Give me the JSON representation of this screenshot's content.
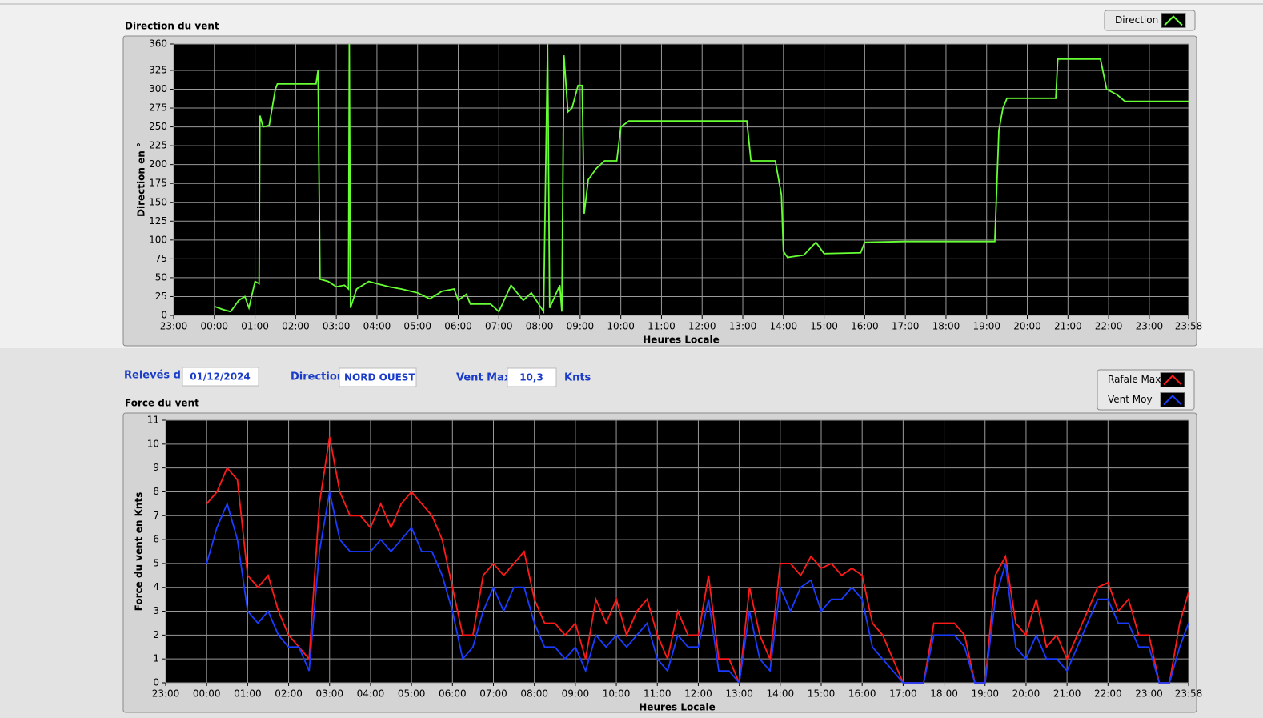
{
  "header": {
    "date_label": "Relevés du",
    "date": "01/12/2024",
    "direction_label": "Direction",
    "direction": "NORD OUEST",
    "vmax_label": "Vent Max",
    "vmax": "10,3",
    "vmax_unit": "Knts"
  },
  "chart_data": [
    {
      "type": "line",
      "title": "Direction du vent",
      "x_label": "Heures Locale",
      "y_label": "Direction en °",
      "grid": true,
      "legend": "top-right",
      "xlim": [
        0,
        24.967
      ],
      "ylim": [
        0,
        360
      ],
      "xticks": [
        {
          "value": 0,
          "label": "23:00"
        },
        {
          "value": 1,
          "label": "00:00"
        },
        {
          "value": 2,
          "label": "01:00"
        },
        {
          "value": 3,
          "label": "02:00"
        },
        {
          "value": 4,
          "label": "03:00"
        },
        {
          "value": 5,
          "label": "04:00"
        },
        {
          "value": 6,
          "label": "05:00"
        },
        {
          "value": 7,
          "label": "06:00"
        },
        {
          "value": 8,
          "label": "07:00"
        },
        {
          "value": 9,
          "label": "08:00"
        },
        {
          "value": 10,
          "label": "09:00"
        },
        {
          "value": 11,
          "label": "10:00"
        },
        {
          "value": 12,
          "label": "11:00"
        },
        {
          "value": 13,
          "label": "12:00"
        },
        {
          "value": 14,
          "label": "13:00"
        },
        {
          "value": 15,
          "label": "14:00"
        },
        {
          "value": 16,
          "label": "15:00"
        },
        {
          "value": 17,
          "label": "16:00"
        },
        {
          "value": 18,
          "label": "17:00"
        },
        {
          "value": 19,
          "label": "18:00"
        },
        {
          "value": 20,
          "label": "19:00"
        },
        {
          "value": 21,
          "label": "20:00"
        },
        {
          "value": 22,
          "label": "21:00"
        },
        {
          "value": 23,
          "label": "22:00"
        },
        {
          "value": 24,
          "label": "23:00"
        },
        {
          "value": 24.967,
          "label": "23:58"
        }
      ],
      "yticks": [
        0,
        25,
        50,
        75,
        100,
        125,
        150,
        175,
        200,
        225,
        250,
        275,
        300,
        325,
        360
      ],
      "x": [
        1.0,
        1.2,
        1.4,
        1.6,
        1.75,
        1.85,
        2.0,
        2.1,
        2.12,
        2.2,
        2.35,
        2.5,
        2.55,
        3.0,
        3.5,
        3.55,
        3.6,
        3.8,
        4.0,
        4.2,
        4.3,
        4.32,
        4.35,
        4.5,
        4.8,
        5.0,
        5.3,
        5.6,
        6.0,
        6.3,
        6.6,
        6.9,
        7.0,
        7.2,
        7.3,
        7.8,
        8.0,
        8.3,
        8.6,
        8.8,
        9.1,
        9.2,
        9.25,
        9.5,
        9.55,
        9.6,
        9.7,
        9.8,
        9.95,
        10.05,
        10.1,
        10.2,
        10.4,
        10.6,
        10.9,
        11.0,
        11.2,
        12,
        13,
        14,
        14.1,
        14.2,
        14.8,
        14.95,
        15.0,
        15.1,
        15.5,
        15.8,
        16.0,
        16.9,
        17.0,
        18,
        19,
        20.2,
        20.3,
        20.4,
        20.5,
        21.0,
        21.7,
        21.75,
        22.0,
        22.8,
        22.95,
        23.2,
        23.4,
        24.967
      ],
      "series": [
        {
          "name": "Direction",
          "color": "#66ff33",
          "values": [
            12,
            8,
            5,
            20,
            25,
            10,
            45,
            42,
            265,
            250,
            252,
            300,
            307,
            307,
            307,
            325,
            48,
            45,
            38,
            40,
            35,
            360,
            10,
            35,
            45,
            42,
            38,
            35,
            30,
            22,
            32,
            35,
            20,
            28,
            15,
            15,
            5,
            40,
            20,
            30,
            5,
            360,
            10,
            40,
            5,
            345,
            270,
            275,
            305,
            305,
            135,
            180,
            195,
            205,
            205,
            250,
            258,
            258,
            258,
            258,
            258,
            205,
            205,
            160,
            85,
            77,
            80,
            97,
            82,
            83,
            97,
            98,
            98,
            98,
            245,
            275,
            288,
            288,
            288,
            340,
            340,
            340,
            300,
            293,
            284,
            284
          ]
        }
      ]
    },
    {
      "type": "line",
      "title": "Force du vent",
      "x_label": "Heures Locale",
      "y_label": "Force du vent en Knts",
      "grid": true,
      "legend": "top-right",
      "xlim": [
        0,
        24.967
      ],
      "ylim": [
        0,
        11
      ],
      "xticks": [
        {
          "value": 0,
          "label": "23:00"
        },
        {
          "value": 1,
          "label": "00:00"
        },
        {
          "value": 2,
          "label": "01:00"
        },
        {
          "value": 3,
          "label": "02:00"
        },
        {
          "value": 4,
          "label": "03:00"
        },
        {
          "value": 5,
          "label": "04:00"
        },
        {
          "value": 6,
          "label": "05:00"
        },
        {
          "value": 7,
          "label": "06:00"
        },
        {
          "value": 8,
          "label": "07:00"
        },
        {
          "value": 9,
          "label": "08:00"
        },
        {
          "value": 10,
          "label": "09:00"
        },
        {
          "value": 11,
          "label": "10:00"
        },
        {
          "value": 12,
          "label": "11:00"
        },
        {
          "value": 13,
          "label": "12:00"
        },
        {
          "value": 14,
          "label": "13:00"
        },
        {
          "value": 15,
          "label": "14:00"
        },
        {
          "value": 16,
          "label": "15:00"
        },
        {
          "value": 17,
          "label": "16:00"
        },
        {
          "value": 18,
          "label": "17:00"
        },
        {
          "value": 19,
          "label": "18:00"
        },
        {
          "value": 20,
          "label": "19:00"
        },
        {
          "value": 21,
          "label": "20:00"
        },
        {
          "value": 22,
          "label": "21:00"
        },
        {
          "value": 23,
          "label": "22:00"
        },
        {
          "value": 24,
          "label": "23:00"
        },
        {
          "value": 24.967,
          "label": "23:58"
        }
      ],
      "yticks": [
        0,
        1,
        2,
        3,
        4,
        5,
        6,
        7,
        8,
        9,
        10,
        11
      ],
      "x": [
        1,
        1.25,
        1.5,
        1.75,
        2,
        2.25,
        2.5,
        2.75,
        3,
        3.25,
        3.5,
        3.75,
        4,
        4.25,
        4.5,
        4.75,
        5,
        5.25,
        5.5,
        5.75,
        6,
        6.25,
        6.5,
        6.75,
        7,
        7.25,
        7.5,
        7.75,
        8,
        8.25,
        8.5,
        8.75,
        9,
        9.25,
        9.5,
        9.75,
        10,
        10.25,
        10.5,
        10.75,
        11,
        11.25,
        11.5,
        11.75,
        12,
        12.25,
        12.5,
        12.75,
        13,
        13.25,
        13.5,
        13.75,
        14,
        14.25,
        14.5,
        14.75,
        15,
        15.25,
        15.5,
        15.75,
        16,
        16.25,
        16.5,
        16.75,
        17,
        17.25,
        17.5,
        17.75,
        18,
        18.25,
        18.5,
        18.75,
        19,
        19.25,
        19.5,
        19.75,
        20,
        20.25,
        20.5,
        20.75,
        21,
        21.25,
        21.5,
        21.75,
        22,
        22.25,
        22.5,
        22.75,
        23,
        23.25,
        23.5,
        23.75,
        24,
        24.25,
        24.5,
        24.75,
        24.967
      ],
      "series": [
        {
          "name": "Rafale Max",
          "color": "#ff1a1a",
          "values": [
            7.5,
            8,
            9,
            8.5,
            4.5,
            4,
            4.5,
            3,
            2,
            1.5,
            1,
            7.5,
            10.3,
            8,
            7,
            7,
            6.5,
            7.5,
            6.5,
            7.5,
            8,
            7.5,
            7,
            6,
            4,
            2,
            2,
            4.5,
            5,
            4.5,
            5,
            5.5,
            3.5,
            2.5,
            2.5,
            2,
            2.5,
            1,
            3.5,
            2.5,
            3.5,
            2,
            3,
            3.5,
            2,
            1,
            3,
            2,
            2,
            4.5,
            1,
            1,
            0,
            4,
            2,
            1,
            5,
            5,
            4.5,
            5.3,
            4.8,
            5,
            4.5,
            4.8,
            4.5,
            2.5,
            2,
            1,
            0,
            0,
            0,
            2.5,
            2.5,
            2.5,
            2,
            0,
            0,
            4.5,
            5.3,
            2.5,
            2,
            3.5,
            1.5,
            2,
            1,
            2,
            3,
            4,
            4.2,
            3,
            3.5,
            2,
            2,
            0,
            0,
            2.5,
            3.8
          ]
        },
        {
          "name": "Vent Moy",
          "color": "#1a3cff",
          "values": [
            5,
            6.5,
            7.5,
            6,
            3,
            2.5,
            3,
            2,
            1.5,
            1.5,
            0.5,
            5.5,
            8,
            6,
            5.5,
            5.5,
            5.5,
            6,
            5.5,
            6,
            6.5,
            5.5,
            5.5,
            4.5,
            3,
            1,
            1.5,
            3,
            4,
            3,
            4,
            4,
            2.5,
            1.5,
            1.5,
            1,
            1.5,
            0.5,
            2,
            1.5,
            2,
            1.5,
            2,
            2.5,
            1,
            0.5,
            2,
            1.5,
            1.5,
            3.5,
            0.5,
            0.5,
            0,
            3,
            1,
            0.5,
            4,
            3,
            4,
            4.3,
            3,
            3.5,
            3.5,
            4,
            3.5,
            1.5,
            1,
            0.5,
            0,
            0,
            0,
            2,
            2,
            2,
            1.5,
            0,
            0,
            3.5,
            5,
            1.5,
            1,
            2,
            1,
            1,
            0.5,
            1.5,
            2.5,
            3.5,
            3.5,
            2.5,
            2.5,
            1.5,
            1.5,
            0,
            0,
            1.5,
            2.5
          ]
        }
      ]
    }
  ]
}
